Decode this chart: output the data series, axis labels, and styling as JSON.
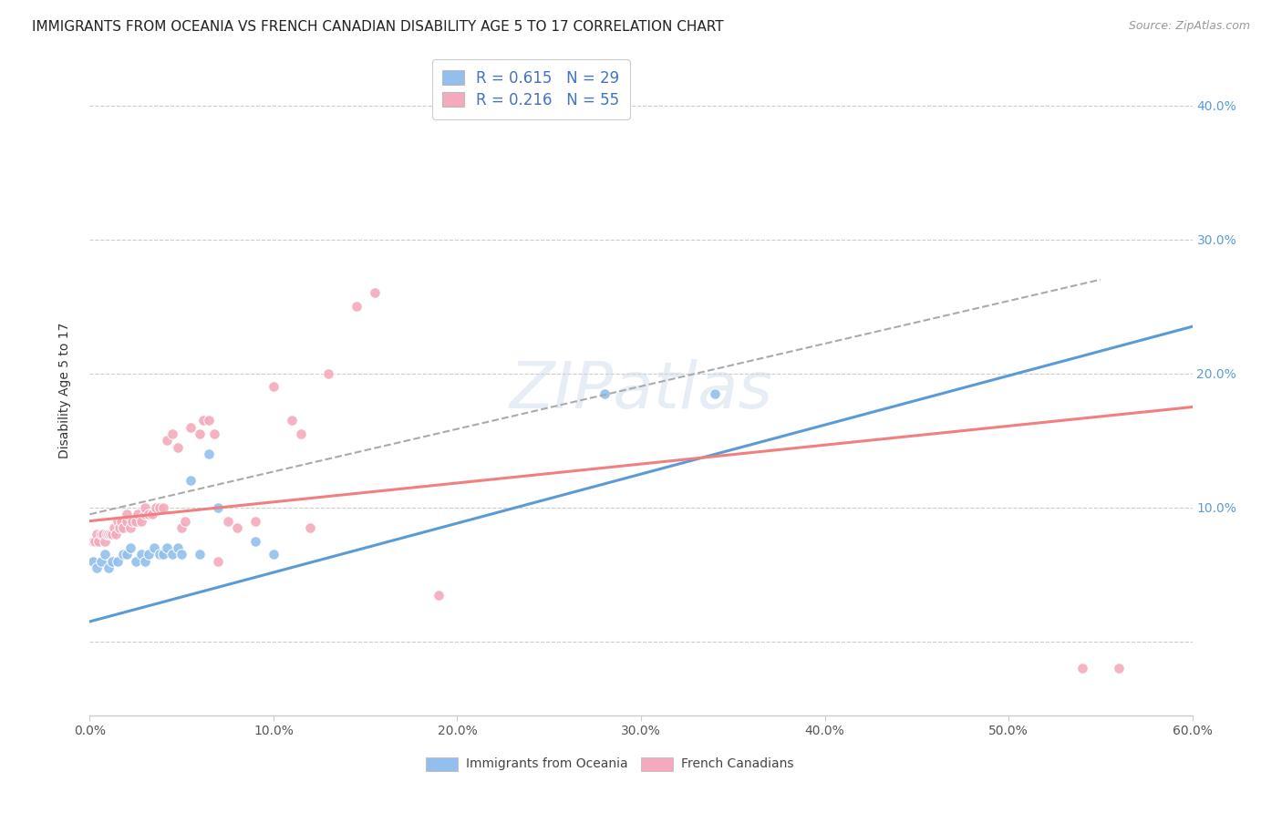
{
  "title": "IMMIGRANTS FROM OCEANIA VS FRENCH CANADIAN DISABILITY AGE 5 TO 17 CORRELATION CHART",
  "source": "Source: ZipAtlas.com",
  "ylabel": "Disability Age 5 to 17",
  "xlim": [
    0.0,
    0.6
  ],
  "ylim": [
    -0.055,
    0.43
  ],
  "xticks": [
    0.0,
    0.1,
    0.2,
    0.3,
    0.4,
    0.5,
    0.6
  ],
  "xtick_labels": [
    "0.0%",
    "10.0%",
    "20.0%",
    "30.0%",
    "40.0%",
    "50.0%",
    "60.0%"
  ],
  "yticks": [
    0.0,
    0.1,
    0.2,
    0.3,
    0.4
  ],
  "ytick_labels_right": [
    "",
    "10.0%",
    "20.0%",
    "30.0%",
    "40.0%"
  ],
  "blue_color": "#92BFED",
  "pink_color": "#F4AABC",
  "blue_line_color": "#5B9BD5",
  "pink_line_color": "#F08080",
  "dashed_line_color": "#AAAAAA",
  "R_blue": 0.615,
  "N_blue": 29,
  "R_pink": 0.216,
  "N_pink": 55,
  "legend_label_blue": "Immigrants from Oceania",
  "legend_label_pink": "French Canadians",
  "blue_scatter_x": [
    0.002,
    0.004,
    0.006,
    0.008,
    0.01,
    0.012,
    0.015,
    0.018,
    0.02,
    0.022,
    0.025,
    0.028,
    0.03,
    0.032,
    0.035,
    0.038,
    0.04,
    0.042,
    0.045,
    0.048,
    0.05,
    0.055,
    0.06,
    0.065,
    0.07,
    0.09,
    0.1,
    0.28,
    0.34
  ],
  "blue_scatter_y": [
    0.06,
    0.055,
    0.06,
    0.065,
    0.055,
    0.06,
    0.06,
    0.065,
    0.065,
    0.07,
    0.06,
    0.065,
    0.06,
    0.065,
    0.07,
    0.065,
    0.065,
    0.07,
    0.065,
    0.07,
    0.065,
    0.12,
    0.065,
    0.14,
    0.1,
    0.075,
    0.065,
    0.185,
    0.185
  ],
  "pink_scatter_x": [
    0.002,
    0.003,
    0.004,
    0.005,
    0.006,
    0.007,
    0.008,
    0.009,
    0.01,
    0.011,
    0.012,
    0.013,
    0.014,
    0.015,
    0.016,
    0.017,
    0.018,
    0.02,
    0.02,
    0.022,
    0.023,
    0.025,
    0.026,
    0.028,
    0.03,
    0.03,
    0.032,
    0.034,
    0.036,
    0.038,
    0.04,
    0.042,
    0.045,
    0.048,
    0.05,
    0.052,
    0.055,
    0.06,
    0.062,
    0.065,
    0.068,
    0.07,
    0.075,
    0.08,
    0.09,
    0.1,
    0.11,
    0.115,
    0.12,
    0.13,
    0.145,
    0.155,
    0.19,
    0.54,
    0.56
  ],
  "pink_scatter_y": [
    0.075,
    0.075,
    0.08,
    0.075,
    0.08,
    0.08,
    0.075,
    0.08,
    0.08,
    0.08,
    0.08,
    0.085,
    0.08,
    0.09,
    0.085,
    0.09,
    0.085,
    0.09,
    0.095,
    0.085,
    0.09,
    0.09,
    0.095,
    0.09,
    0.095,
    0.1,
    0.095,
    0.095,
    0.1,
    0.1,
    0.1,
    0.15,
    0.155,
    0.145,
    0.085,
    0.09,
    0.16,
    0.155,
    0.165,
    0.165,
    0.155,
    0.06,
    0.09,
    0.085,
    0.09,
    0.19,
    0.165,
    0.155,
    0.085,
    0.2,
    0.25,
    0.26,
    0.035,
    -0.02,
    -0.02
  ],
  "blue_trend_x": [
    0.0,
    0.6
  ],
  "blue_trend_y": [
    0.015,
    0.235
  ],
  "pink_trend_x": [
    0.0,
    0.6
  ],
  "pink_trend_y": [
    0.09,
    0.175
  ],
  "dashed_trend_x": [
    0.0,
    0.55
  ],
  "dashed_trend_y": [
    0.095,
    0.27
  ],
  "watermark": "ZIPatlas",
  "title_fontsize": 11,
  "axis_label_fontsize": 10,
  "tick_fontsize": 10,
  "legend_fontsize": 12
}
